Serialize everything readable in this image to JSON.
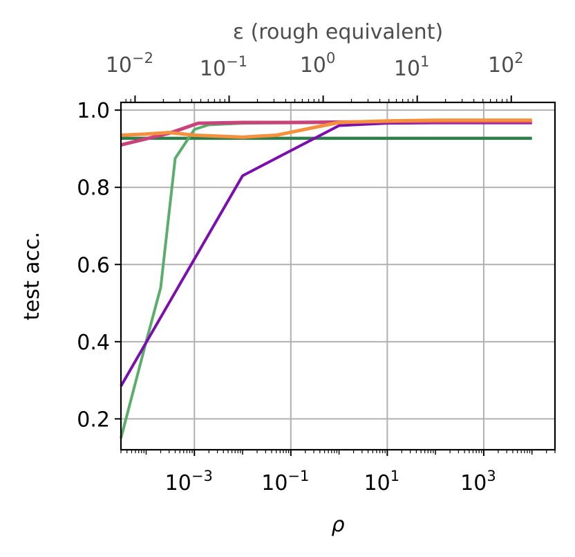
{
  "chart_data": {
    "type": "line",
    "xlabel": "ρ",
    "ylabel": "test acc.",
    "top_axis_label": "ε (rough equivalent)",
    "x_scale": "log",
    "xlim": [
      3e-05,
      30000
    ],
    "ylim": [
      0.12,
      1.02
    ],
    "grid": true,
    "x_ticks": [
      0.001,
      0.1,
      10,
      1000
    ],
    "x_tick_labels": [
      {
        "base": "10",
        "exp": "−3"
      },
      {
        "base": "10",
        "exp": "−1"
      },
      {
        "base": "10",
        "exp": "1"
      },
      {
        "base": "10",
        "exp": "3"
      }
    ],
    "y_ticks": [
      0.2,
      0.4,
      0.6,
      0.8,
      1.0
    ],
    "y_tick_labels": [
      "0.2",
      "0.4",
      "0.6",
      "0.8",
      "1.0"
    ],
    "top_axis": {
      "scale": "log",
      "ticks": [
        0.01,
        0.1,
        1,
        10,
        100
      ],
      "tick_labels": [
        {
          "base": "10",
          "exp": "−2"
        },
        {
          "base": "10",
          "exp": "−1"
        },
        {
          "base": "10",
          "exp": "0"
        },
        {
          "base": "10",
          "exp": "1"
        },
        {
          "base": "10",
          "exp": "2"
        }
      ]
    },
    "series": [
      {
        "color": "#2e7d4a",
        "x": [
          3e-05,
          0.0001,
          0.001,
          0.01,
          0.1,
          1,
          10,
          100,
          1000,
          10000
        ],
        "y": [
          0.927,
          0.927,
          0.927,
          0.927,
          0.927,
          0.927,
          0.927,
          0.927,
          0.927,
          0.927
        ]
      },
      {
        "color": "#5aad6b",
        "x": [
          3e-05,
          0.0001,
          0.0002,
          0.0004,
          0.001,
          0.002,
          0.01,
          0.1,
          1,
          10,
          100,
          1000,
          10000
        ],
        "y": [
          0.15,
          0.4,
          0.54,
          0.875,
          0.95,
          0.962,
          0.966,
          0.967,
          0.968,
          0.968,
          0.968,
          0.968,
          0.968
        ]
      },
      {
        "color": "#7b0fae",
        "x": [
          3e-05,
          0.01,
          1,
          10,
          100,
          1000,
          10000
        ],
        "y": [
          0.285,
          0.83,
          0.96,
          0.966,
          0.967,
          0.967,
          0.967
        ]
      },
      {
        "color": "#c9437a",
        "x": [
          3e-05,
          0.0003,
          0.0012,
          0.01,
          0.1,
          1,
          10,
          100,
          1000,
          10000
        ],
        "y": [
          0.91,
          0.94,
          0.966,
          0.968,
          0.968,
          0.969,
          0.97,
          0.97,
          0.97,
          0.97
        ]
      },
      {
        "color": "#f5913e",
        "x": [
          3e-05,
          0.0001,
          0.0003,
          0.001,
          0.01,
          0.05,
          0.3,
          1,
          10,
          100,
          1000,
          10000
        ],
        "y": [
          0.935,
          0.938,
          0.942,
          0.935,
          0.93,
          0.935,
          0.955,
          0.968,
          0.972,
          0.974,
          0.974,
          0.974
        ]
      }
    ]
  }
}
